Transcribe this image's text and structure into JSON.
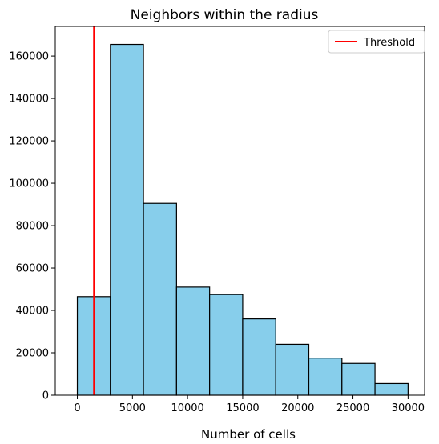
{
  "chart_data": {
    "type": "bar",
    "title": "Neighbors within the radius",
    "xlabel": "Number of cells",
    "ylabel": "",
    "bins": [
      {
        "x0": 0,
        "x1": 3000,
        "count": 46500
      },
      {
        "x0": 3000,
        "x1": 6000,
        "count": 165500
      },
      {
        "x0": 6000,
        "x1": 9000,
        "count": 90500
      },
      {
        "x0": 9000,
        "x1": 12000,
        "count": 51000
      },
      {
        "x0": 12000,
        "x1": 15000,
        "count": 47500
      },
      {
        "x0": 15000,
        "x1": 18000,
        "count": 36000
      },
      {
        "x0": 18000,
        "x1": 21000,
        "count": 24000
      },
      {
        "x0": 21000,
        "x1": 24000,
        "count": 17500
      },
      {
        "x0": 24000,
        "x1": 27000,
        "count": 15000
      },
      {
        "x0": 27000,
        "x1": 30000,
        "count": 5500
      }
    ],
    "xlim": [
      -2000,
      31500
    ],
    "ylim": [
      0,
      174000
    ],
    "xticks": [
      0,
      5000,
      10000,
      15000,
      20000,
      25000,
      30000
    ],
    "yticks": [
      0,
      20000,
      40000,
      60000,
      80000,
      100000,
      120000,
      140000,
      160000
    ],
    "threshold": {
      "label": "Threshold",
      "x": 1500,
      "color": "#ff0000"
    },
    "bar_color": "#87ceeb",
    "bar_edge_color": "#000000",
    "legend_position": "top-right",
    "grid": false
  }
}
